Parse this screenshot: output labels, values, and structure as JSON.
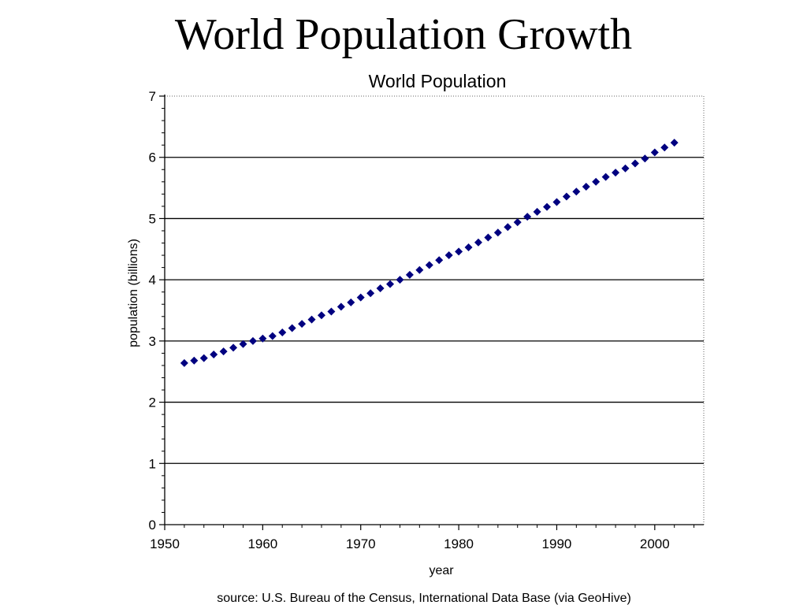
{
  "slide": {
    "title": "World Population Growth"
  },
  "chart_data": {
    "type": "scatter",
    "title": "World Population",
    "xlabel": "year",
    "ylabel": "population (billions)",
    "xlim": [
      1950,
      2005
    ],
    "ylim": [
      0,
      7
    ],
    "xticks": [
      "1950",
      "1960",
      "1970",
      "1980",
      "1990",
      "2000"
    ],
    "yticks": [
      "0",
      "1",
      "2",
      "3",
      "4",
      "5",
      "6",
      "7"
    ],
    "grid": "horizontal",
    "marker_color": "#000080",
    "source": "source: U.S. Bureau of the Census, International Data Base (via GeoHive)",
    "series": [
      {
        "x": [
          1952,
          1953,
          1954,
          1955,
          1956,
          1957,
          1958,
          1959,
          1960,
          1961,
          1962,
          1963,
          1964,
          1965,
          1966,
          1967,
          1968,
          1969,
          1970,
          1971,
          1972,
          1973,
          1974,
          1975,
          1976,
          1977,
          1978,
          1979,
          1980,
          1981,
          1982,
          1983,
          1984,
          1985,
          1986,
          1987,
          1988,
          1989,
          1990,
          1991,
          1992,
          1993,
          1994,
          1995,
          1996,
          1997,
          1998,
          1999,
          2000,
          2001,
          2002
        ],
        "values": [
          2.64,
          2.68,
          2.72,
          2.78,
          2.83,
          2.89,
          2.95,
          3.0,
          3.04,
          3.08,
          3.14,
          3.21,
          3.28,
          3.35,
          3.42,
          3.48,
          3.56,
          3.63,
          3.71,
          3.78,
          3.86,
          3.93,
          4.0,
          4.08,
          4.16,
          4.24,
          4.32,
          4.4,
          4.46,
          4.53,
          4.61,
          4.69,
          4.77,
          4.86,
          4.94,
          5.03,
          5.11,
          5.19,
          5.27,
          5.36,
          5.44,
          5.52,
          5.6,
          5.68,
          5.75,
          5.82,
          5.9,
          5.98,
          6.08,
          6.16,
          6.24
        ]
      }
    ]
  }
}
